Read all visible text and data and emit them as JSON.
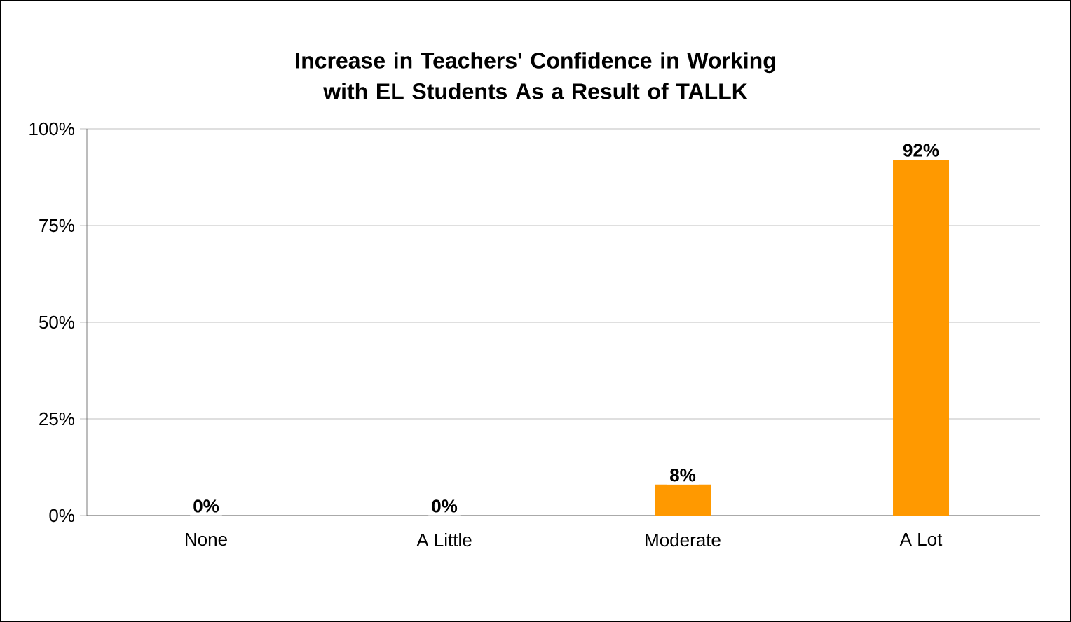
{
  "chart_data": {
    "type": "bar",
    "title": "Increase in Teachers' Confidence in Working with EL Students As a Result of TALLK",
    "categories": [
      "None",
      "A Little",
      "Moderate",
      "A Lot"
    ],
    "values": [
      0,
      0,
      8,
      92
    ],
    "value_labels": [
      "0%",
      "0%",
      "8%",
      "92%"
    ],
    "color": "#ff9900",
    "ylim": [
      0,
      100
    ],
    "yticks": [
      {
        "value": 0,
        "label": "0%"
      },
      {
        "value": 25,
        "label": "25%"
      },
      {
        "value": 50,
        "label": "50%"
      },
      {
        "value": 75,
        "label": "75%"
      },
      {
        "value": 100,
        "label": "100%"
      }
    ],
    "grid": "y"
  }
}
